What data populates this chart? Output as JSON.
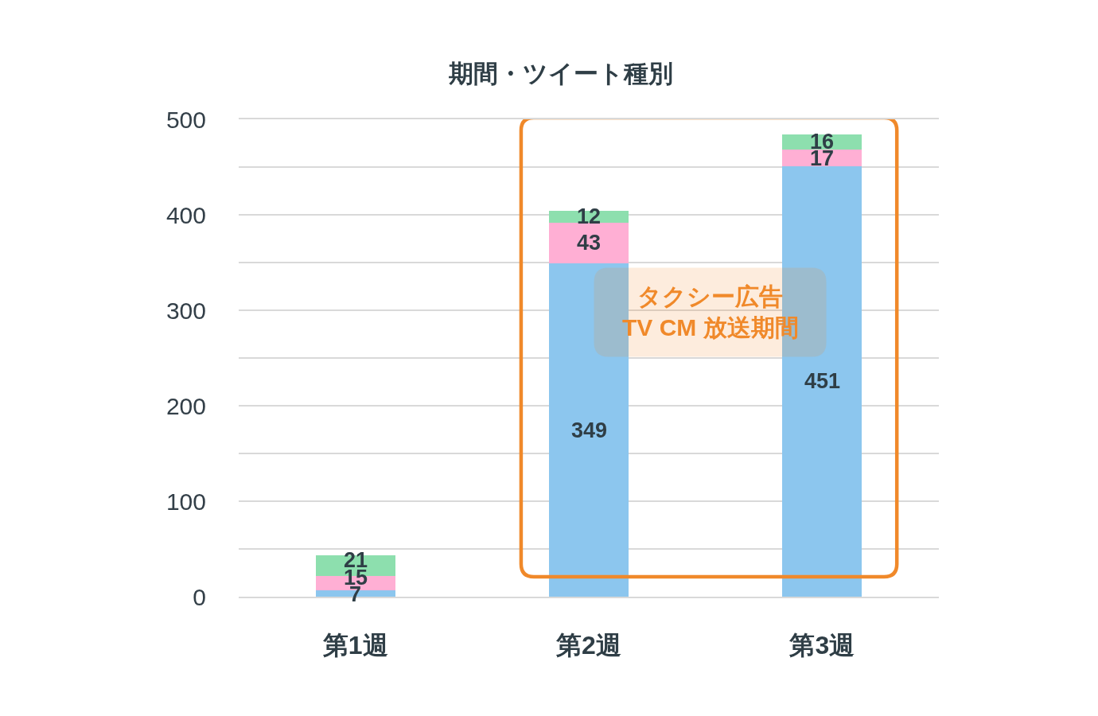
{
  "chart_data": {
    "type": "bar",
    "title": "期間・ツイート種別",
    "categories": [
      "第1週",
      "第2週",
      "第3週"
    ],
    "stacked": true,
    "series": [
      {
        "color": "#8cc6ee",
        "values": [
          7,
          349,
          451
        ]
      },
      {
        "color": "#ffafd4",
        "values": [
          15,
          43,
          17
        ]
      },
      {
        "color": "#8ddfae",
        "values": [
          21,
          12,
          16
        ]
      }
    ],
    "ylim": [
      0,
      500
    ],
    "yticks": [
      0,
      {
        "value": 50,
        "label": null
      },
      100,
      {
        "value": 150,
        "label": null
      },
      200,
      {
        "value": 250,
        "label": null
      },
      300,
      {
        "value": 350,
        "label": null
      },
      400,
      {
        "value": 450,
        "label": null
      },
      500
    ],
    "grid": "y",
    "data_labels": true,
    "bands": [
      {
        "axis": "x",
        "from": "第2週",
        "to": "第3週",
        "label": "タクシー広告\nTV CM 放送期間",
        "color": "#f0892a"
      }
    ]
  }
}
